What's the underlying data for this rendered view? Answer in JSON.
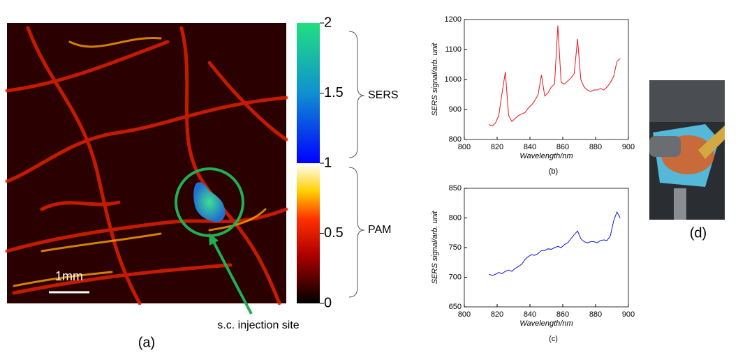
{
  "image_panel": {
    "scale_bar": "1mm",
    "annotation": "s.c. injection site",
    "panel_label": "(a)",
    "colorbar": {
      "lim": [
        0,
        2
      ],
      "ticks": [
        0,
        0.5,
        1,
        1.5,
        2
      ],
      "groups": [
        "SERS",
        "PAM"
      ]
    }
  },
  "photo_panel": {
    "panel_label": "(d)"
  },
  "chart_data": [
    {
      "type": "line",
      "panel_label": "(b)",
      "x_label": "Wavelength/nm",
      "y_label": "SERS signal/arb. unit",
      "xlim": [
        800,
        900
      ],
      "xticks": [
        800,
        820,
        840,
        860,
        880,
        900
      ],
      "ylim": [
        800,
        1200
      ],
      "yticks": [
        800,
        900,
        1000,
        1100,
        1200
      ],
      "x": [
        815,
        817,
        819,
        821,
        823,
        825,
        827,
        829,
        831,
        833,
        835,
        837,
        839,
        841,
        843,
        845,
        847,
        849,
        851,
        853,
        855,
        857,
        859,
        861,
        863,
        865,
        867,
        869,
        871,
        873,
        875,
        877,
        879,
        881,
        883,
        885,
        887,
        889,
        891,
        893,
        895
      ],
      "series": [
        {
          "color": "#e8141c",
          "values": [
            850,
            845,
            855,
            880,
            955,
            1025,
            880,
            860,
            870,
            880,
            885,
            890,
            905,
            915,
            930,
            950,
            1015,
            945,
            955,
            975,
            985,
            1180,
            990,
            985,
            995,
            1005,
            1020,
            1135,
            1000,
            975,
            965,
            960,
            965,
            965,
            970,
            965,
            975,
            990,
            1010,
            1060,
            1070
          ]
        }
      ]
    },
    {
      "type": "line",
      "panel_label": "(c)",
      "x_label": "Wavelength/nm",
      "y_label": "SERS signal/arb. unit",
      "xlim": [
        800,
        900
      ],
      "xticks": [
        800,
        820,
        840,
        860,
        880,
        900
      ],
      "ylim": [
        650,
        850
      ],
      "yticks": [
        650,
        700,
        750,
        800,
        850
      ],
      "x": [
        815,
        817,
        819,
        821,
        823,
        825,
        827,
        829,
        831,
        833,
        835,
        837,
        839,
        841,
        843,
        845,
        847,
        849,
        851,
        853,
        855,
        857,
        859,
        861,
        863,
        865,
        867,
        869,
        871,
        873,
        875,
        877,
        879,
        881,
        883,
        885,
        887,
        889,
        891,
        893,
        895
      ],
      "series": [
        {
          "color": "#1414e0",
          "values": [
            705,
            703,
            705,
            708,
            706,
            710,
            712,
            710,
            715,
            718,
            722,
            730,
            735,
            738,
            737,
            740,
            745,
            745,
            748,
            747,
            750,
            752,
            750,
            755,
            758,
            765,
            772,
            778,
            765,
            760,
            758,
            760,
            760,
            758,
            762,
            763,
            762,
            770,
            795,
            810,
            800
          ]
        }
      ]
    }
  ]
}
